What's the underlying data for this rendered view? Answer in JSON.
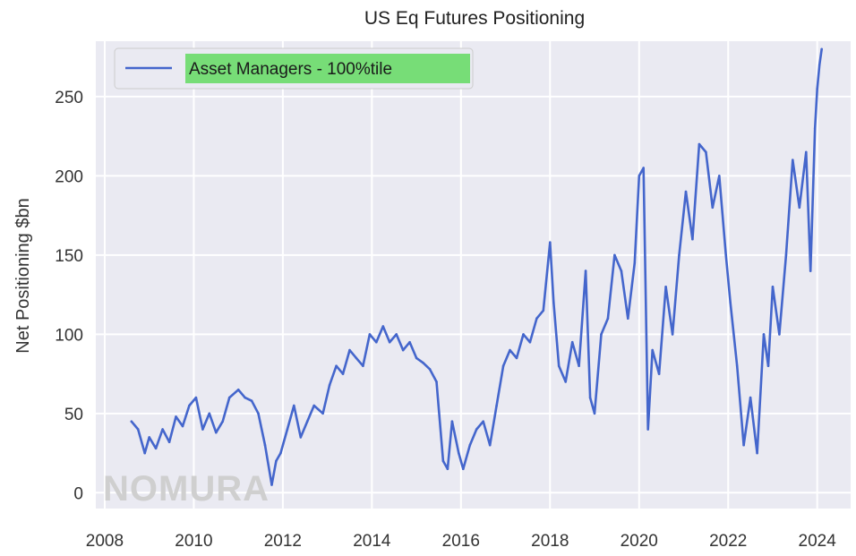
{
  "chart_data": {
    "type": "line",
    "title": "US Eq Futures Positioning",
    "xlabel": "",
    "ylabel": "Net Positioning $bn",
    "xlim": [
      2007.8,
      2024.75
    ],
    "ylim": [
      -10,
      285
    ],
    "xticks": [
      2008,
      2010,
      2012,
      2014,
      2016,
      2018,
      2020,
      2022,
      2024
    ],
    "yticks": [
      0,
      50,
      100,
      150,
      200,
      250
    ],
    "grid": true,
    "legend_position": "top-left",
    "colors": {
      "series": "#4466cc",
      "plot_bg": "#eaeaf2",
      "grid": "#ffffff",
      "legend_highlight": "#77dd77"
    },
    "series": [
      {
        "name": "Asset Managers - 100%tile",
        "x": [
          2008.6,
          2008.75,
          2008.9,
          2009.0,
          2009.15,
          2009.3,
          2009.45,
          2009.6,
          2009.75,
          2009.9,
          2010.05,
          2010.2,
          2010.35,
          2010.5,
          2010.65,
          2010.8,
          2011.0,
          2011.15,
          2011.3,
          2011.45,
          2011.6,
          2011.75,
          2011.85,
          2011.95,
          2012.1,
          2012.25,
          2012.4,
          2012.55,
          2012.7,
          2012.9,
          2013.05,
          2013.2,
          2013.35,
          2013.5,
          2013.65,
          2013.8,
          2013.95,
          2014.1,
          2014.25,
          2014.4,
          2014.55,
          2014.7,
          2014.85,
          2015.0,
          2015.15,
          2015.3,
          2015.45,
          2015.6,
          2015.7,
          2015.8,
          2015.95,
          2016.05,
          2016.2,
          2016.35,
          2016.5,
          2016.65,
          2016.8,
          2016.95,
          2017.1,
          2017.25,
          2017.4,
          2017.55,
          2017.7,
          2017.85,
          2018.0,
          2018.08,
          2018.2,
          2018.35,
          2018.5,
          2018.65,
          2018.8,
          2018.9,
          2019.0,
          2019.15,
          2019.3,
          2019.45,
          2019.6,
          2019.75,
          2019.9,
          2020.0,
          2020.1,
          2020.2,
          2020.3,
          2020.45,
          2020.6,
          2020.75,
          2020.9,
          2021.05,
          2021.2,
          2021.35,
          2021.5,
          2021.65,
          2021.8,
          2021.95,
          2022.05,
          2022.2,
          2022.35,
          2022.5,
          2022.65,
          2022.8,
          2022.9,
          2023.0,
          2023.15,
          2023.3,
          2023.45,
          2023.6,
          2023.75,
          2023.85,
          2023.95,
          2024.0,
          2024.05,
          2024.1
        ],
        "values": [
          45,
          40,
          25,
          35,
          28,
          40,
          32,
          48,
          42,
          55,
          60,
          40,
          50,
          38,
          45,
          60,
          65,
          60,
          58,
          50,
          30,
          5,
          20,
          25,
          40,
          55,
          35,
          45,
          55,
          50,
          68,
          80,
          75,
          90,
          85,
          80,
          100,
          95,
          105,
          95,
          100,
          90,
          95,
          85,
          82,
          78,
          70,
          20,
          15,
          45,
          25,
          15,
          30,
          40,
          45,
          30,
          55,
          80,
          90,
          85,
          100,
          95,
          110,
          115,
          158,
          120,
          80,
          70,
          95,
          80,
          140,
          60,
          50,
          100,
          110,
          150,
          140,
          110,
          145,
          200,
          205,
          40,
          90,
          75,
          130,
          100,
          150,
          190,
          160,
          220,
          215,
          180,
          200,
          150,
          120,
          80,
          30,
          60,
          25,
          100,
          80,
          130,
          100,
          150,
          210,
          180,
          215,
          140,
          230,
          255,
          270,
          280
        ]
      }
    ]
  },
  "watermark": "NOMURA"
}
